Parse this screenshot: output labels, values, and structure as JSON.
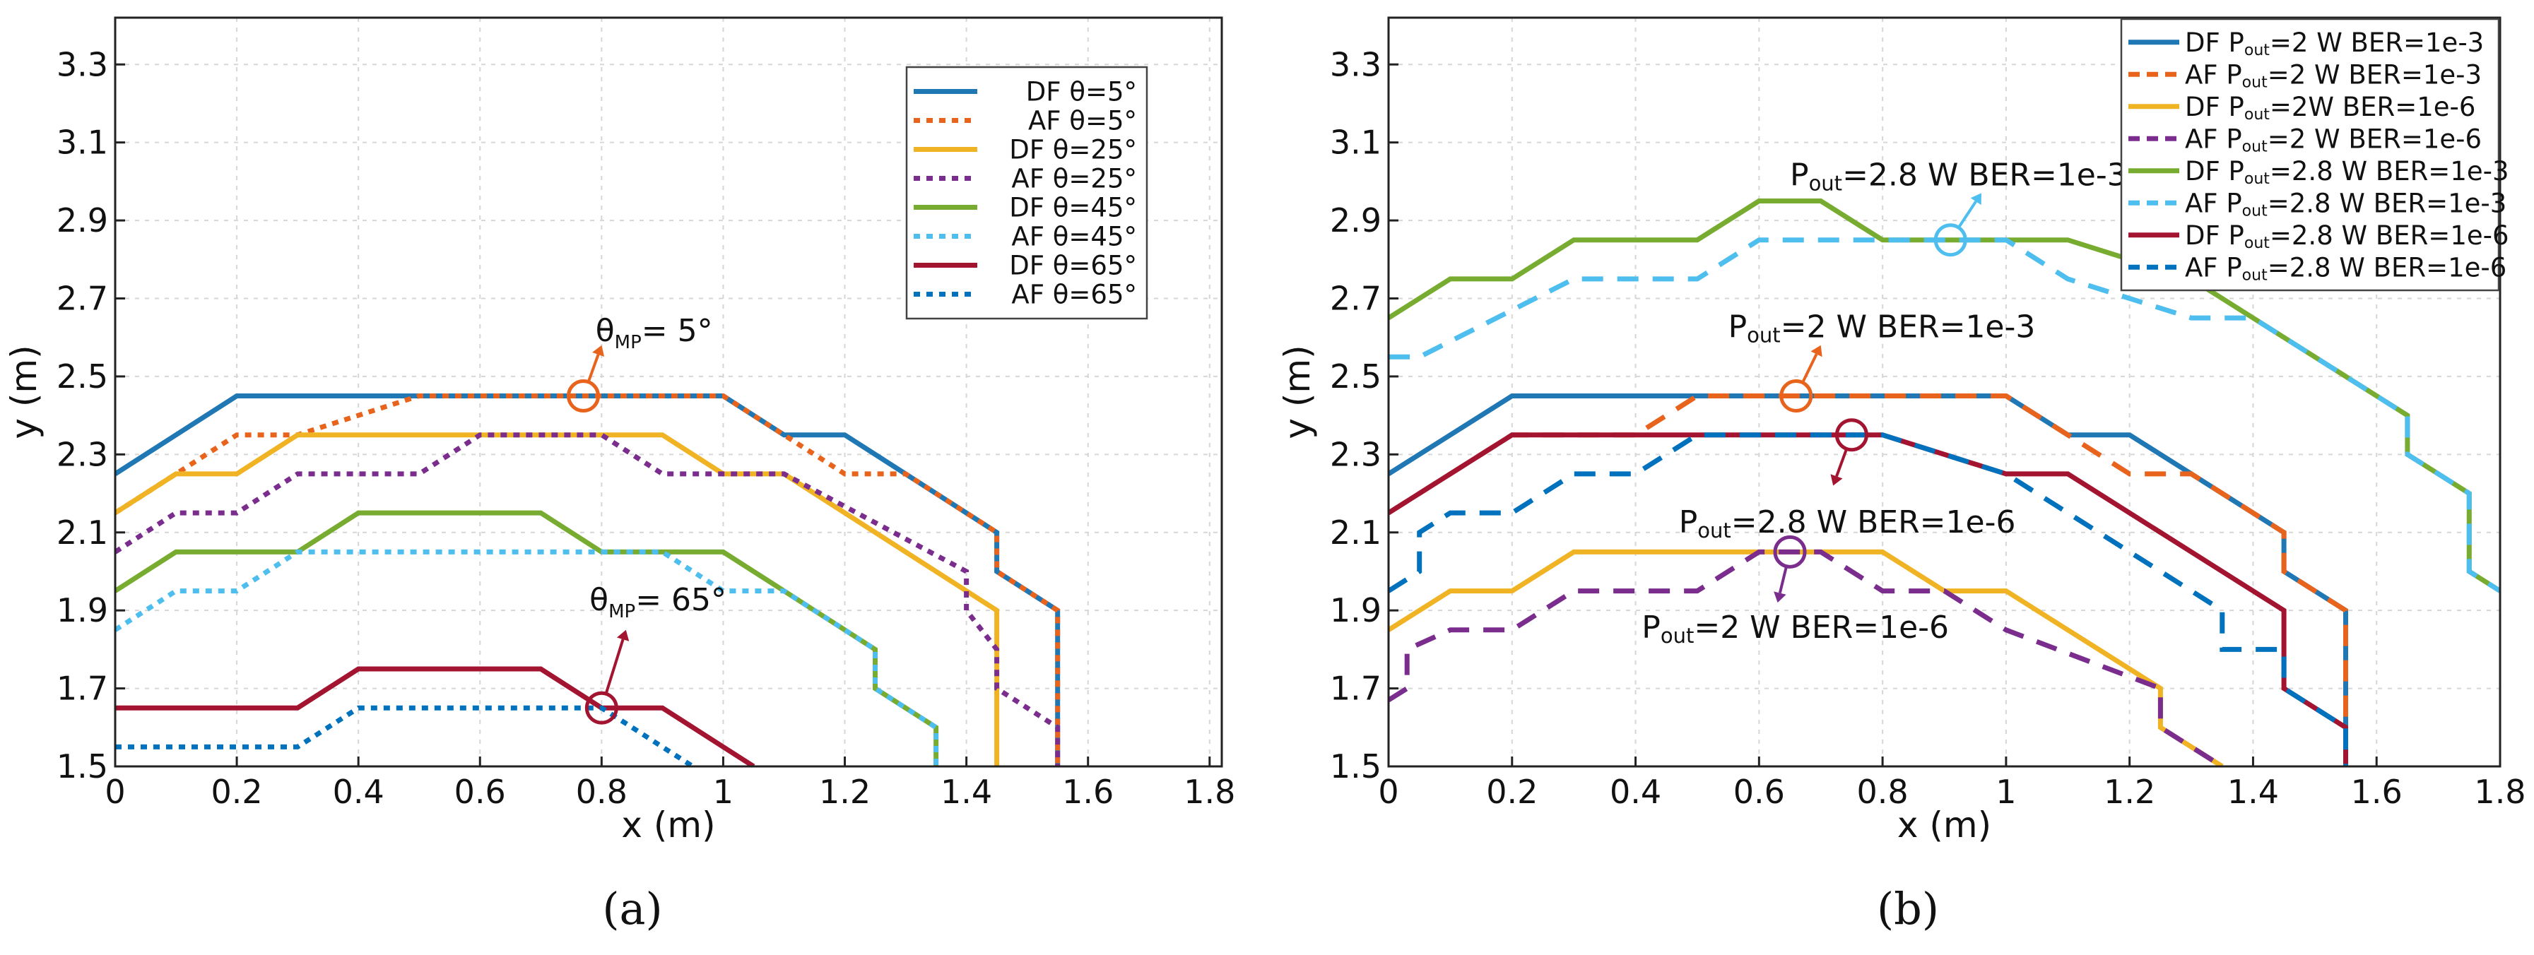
{
  "chart_data": [
    {
      "id": "a",
      "type": "line",
      "caption": "(a)",
      "title": "",
      "xlabel": "x (m)",
      "ylabel": "y (m)",
      "xlim": [
        0,
        1.82
      ],
      "ylim": [
        1.5,
        3.42
      ],
      "xticks": [
        0,
        0.2,
        0.4,
        0.6,
        0.8,
        1,
        1.2,
        1.4,
        1.6,
        1.8
      ],
      "xtick_labels": [
        "0",
        "0.2",
        "0.4",
        "0.6",
        "0.8",
        "1",
        "1.2",
        "1.4",
        "1.6",
        "1.8"
      ],
      "yticks": [
        1.5,
        1.7,
        1.9,
        2.1,
        2.3,
        2.5,
        2.7,
        2.9,
        3.1,
        3.3
      ],
      "ytick_labels": [
        "1.5",
        "1.7",
        "1.9",
        "2.1",
        "2.3",
        "2.5",
        "2.7",
        "2.9",
        "3.1",
        "3.3"
      ],
      "grid": true,
      "legend_position": "top-right",
      "series": [
        {
          "name": "DF θ=5°",
          "color": "#1f77b4",
          "dash": "solid",
          "x": [
            0,
            0.2,
            1.0,
            1.1,
            1.2,
            1.45,
            1.45,
            1.55,
            1.55
          ],
          "y": [
            2.25,
            2.45,
            2.45,
            2.35,
            2.35,
            2.1,
            2.0,
            1.9,
            1.5
          ]
        },
        {
          "name": "AF θ=5°",
          "color": "#e8631c",
          "dash": "dotted",
          "x": [
            0,
            0.2,
            0.3,
            0.5,
            1.0,
            1.2,
            1.3,
            1.45,
            1.45,
            1.55,
            1.55
          ],
          "y": [
            2.15,
            2.35,
            2.35,
            2.45,
            2.45,
            2.25,
            2.25,
            2.1,
            2.0,
            1.9,
            1.5
          ]
        },
        {
          "name": "DF θ=25°",
          "color": "#f0b323",
          "dash": "solid",
          "x": [
            0,
            0.1,
            0.2,
            0.3,
            0.9,
            1.0,
            1.1,
            1.45,
            1.45
          ],
          "y": [
            2.15,
            2.25,
            2.25,
            2.35,
            2.35,
            2.25,
            2.25,
            1.9,
            1.5
          ]
        },
        {
          "name": "AF θ=25°",
          "color": "#7b2d8e",
          "dash": "dotted",
          "x": [
            0,
            0.1,
            0.2,
            0.3,
            0.5,
            0.6,
            0.8,
            0.9,
            1.1,
            1.4,
            1.4,
            1.45,
            1.45,
            1.55,
            1.55
          ],
          "y": [
            2.05,
            2.15,
            2.15,
            2.25,
            2.25,
            2.35,
            2.35,
            2.25,
            2.25,
            2.0,
            1.9,
            1.8,
            1.7,
            1.6,
            1.5
          ]
        },
        {
          "name": "DF θ=45°",
          "color": "#77ac30",
          "dash": "solid",
          "x": [
            0,
            0.1,
            0.3,
            0.4,
            0.7,
            0.8,
            1.0,
            1.1,
            1.25,
            1.25,
            1.35,
            1.35
          ],
          "y": [
            1.95,
            2.05,
            2.05,
            2.15,
            2.15,
            2.05,
            2.05,
            1.95,
            1.8,
            1.7,
            1.6,
            1.5
          ]
        },
        {
          "name": "AF θ=45°",
          "color": "#4dbeee",
          "dash": "dotted",
          "x": [
            0,
            0.1,
            0.2,
            0.3,
            0.9,
            1.0,
            1.1,
            1.25,
            1.25,
            1.35,
            1.35
          ],
          "y": [
            1.85,
            1.95,
            1.95,
            2.05,
            2.05,
            1.95,
            1.95,
            1.8,
            1.7,
            1.6,
            1.5
          ]
        },
        {
          "name": "DF θ=65°",
          "color": "#a2142f",
          "dash": "solid",
          "x": [
            0,
            0.3,
            0.4,
            0.7,
            0.8,
            0.9,
            1.05
          ],
          "y": [
            1.65,
            1.65,
            1.75,
            1.75,
            1.65,
            1.65,
            1.5
          ]
        },
        {
          "name": "AF θ=65°",
          "color": "#0072bd",
          "dash": "dotted",
          "x": [
            0,
            0.3,
            0.4,
            0.8,
            0.95
          ],
          "y": [
            1.55,
            1.55,
            1.65,
            1.65,
            1.5
          ]
        }
      ],
      "annotations": [
        {
          "sym": "θ",
          "sub": "MP",
          "rest": "= 5°",
          "tx": 0.79,
          "ty": 2.59,
          "cx": 0.77,
          "cy": 2.45,
          "ax": 0.8,
          "ay": 2.58,
          "color": "#e8631c"
        },
        {
          "sym": "θ",
          "sub": "MP",
          "rest": "= 65°",
          "tx": 0.78,
          "ty": 1.9,
          "cx": 0.8,
          "cy": 1.65,
          "ax": 0.84,
          "ay": 1.85,
          "color": "#a2142f"
        }
      ]
    },
    {
      "id": "b",
      "type": "line",
      "caption": "(b)",
      "title": "",
      "xlabel": "x (m)",
      "ylabel": "y (m)",
      "xlim": [
        0,
        1.8
      ],
      "ylim": [
        1.5,
        3.42
      ],
      "xticks": [
        0,
        0.2,
        0.4,
        0.6,
        0.8,
        1,
        1.2,
        1.4,
        1.6,
        1.8
      ],
      "xtick_labels": [
        "0",
        "0.2",
        "0.4",
        "0.6",
        "0.8",
        "1",
        "1.2",
        "1.4",
        "1.6",
        "1.8"
      ],
      "yticks": [
        1.5,
        1.7,
        1.9,
        2.1,
        2.3,
        2.5,
        2.7,
        2.9,
        3.1,
        3.3
      ],
      "ytick_labels": [
        "1.5",
        "1.7",
        "1.9",
        "2.1",
        "2.3",
        "2.5",
        "2.7",
        "2.9",
        "3.1",
        "3.3"
      ],
      "grid": true,
      "legend_position": "top-right",
      "series": [
        {
          "p": "DF P",
          "s": "out",
          "q": "=2 W BER=1e-3",
          "color": "#1f77b4",
          "dash": "solid",
          "x": [
            0,
            0.2,
            1.0,
            1.1,
            1.2,
            1.45,
            1.45,
            1.55,
            1.55
          ],
          "y": [
            2.25,
            2.45,
            2.45,
            2.35,
            2.35,
            2.1,
            2.0,
            1.9,
            1.5
          ]
        },
        {
          "p": "AF P",
          "s": "out",
          "q": "=2 W BER=1e-3",
          "color": "#e8631c",
          "dash": "dashed",
          "x": [
            0,
            0.2,
            0.4,
            0.5,
            1.0,
            1.2,
            1.3,
            1.45,
            1.45,
            1.55,
            1.55
          ],
          "y": [
            2.15,
            2.35,
            2.35,
            2.45,
            2.45,
            2.25,
            2.25,
            2.1,
            2.0,
            1.9,
            1.5
          ]
        },
        {
          "p": "DF P",
          "s": "out",
          "q": "=2W BER=1e-6",
          "color": "#f0b323",
          "dash": "solid",
          "x": [
            0,
            0.1,
            0.2,
            0.3,
            0.8,
            0.9,
            1.0,
            1.25,
            1.25,
            1.35
          ],
          "y": [
            1.85,
            1.95,
            1.95,
            2.05,
            2.05,
            1.95,
            1.95,
            1.7,
            1.6,
            1.5
          ]
        },
        {
          "p": "AF P",
          "s": "out",
          "q": "=2 W BER=1e-6",
          "color": "#7b2d8e",
          "dash": "dashed",
          "x": [
            0,
            0.03,
            0.03,
            0.1,
            0.2,
            0.3,
            0.5,
            0.6,
            0.7,
            0.8,
            0.9,
            1.0,
            1.25,
            1.25,
            1.35
          ],
          "y": [
            1.67,
            1.7,
            1.8,
            1.85,
            1.85,
            1.95,
            1.95,
            2.05,
            2.05,
            1.95,
            1.95,
            1.85,
            1.7,
            1.6,
            1.5
          ]
        },
        {
          "p": "DF P",
          "s": "out",
          "q": "=2.8 W BER=1e-3",
          "color": "#77ac30",
          "dash": "solid",
          "x": [
            0,
            0.1,
            0.2,
            0.3,
            0.5,
            0.6,
            0.7,
            0.8,
            1.1,
            1.3,
            1.65,
            1.65,
            1.75,
            1.75,
            1.8
          ],
          "y": [
            2.65,
            2.75,
            2.75,
            2.85,
            2.85,
            2.95,
            2.95,
            2.85,
            2.85,
            2.75,
            2.4,
            2.3,
            2.2,
            2.0,
            1.95
          ]
        },
        {
          "p": "AF P",
          "s": "out",
          "q": "=2.8 W BER=1e-3",
          "color": "#4dbeee",
          "dash": "dashed",
          "x": [
            0,
            0.05,
            0.3,
            0.5,
            0.6,
            1.0,
            1.1,
            1.3,
            1.4,
            1.65,
            1.65,
            1.75,
            1.75,
            1.8
          ],
          "y": [
            2.55,
            2.55,
            2.75,
            2.75,
            2.85,
            2.85,
            2.75,
            2.65,
            2.65,
            2.4,
            2.3,
            2.2,
            2.0,
            1.95
          ]
        },
        {
          "p": "DF P",
          "s": "out",
          "q": "=2.8 W BER=1e-6",
          "color": "#a2142f",
          "dash": "solid",
          "x": [
            0,
            0.2,
            0.8,
            1.0,
            1.1,
            1.45,
            1.45,
            1.55,
            1.55
          ],
          "y": [
            2.15,
            2.35,
            2.35,
            2.25,
            2.25,
            1.9,
            1.7,
            1.6,
            1.5
          ]
        },
        {
          "p": "AF P",
          "s": "out",
          "q": "=2.8 W BER=1e-6",
          "color": "#0072bd",
          "dash": "dashed",
          "x": [
            0,
            0.05,
            0.05,
            0.1,
            0.2,
            0.3,
            0.4,
            0.5,
            0.8,
            1.0,
            1.1,
            1.35,
            1.35,
            1.45,
            1.45,
            1.55,
            1.55
          ],
          "y": [
            1.95,
            2.0,
            2.1,
            2.15,
            2.15,
            2.25,
            2.25,
            2.35,
            2.35,
            2.25,
            2.15,
            1.9,
            1.8,
            1.8,
            1.7,
            1.6,
            1.5
          ]
        }
      ],
      "annotations": [
        {
          "p": "P",
          "s": "out",
          "q": "=2.8 W BER=1e-3",
          "tx": 0.65,
          "ty": 2.99,
          "cx": 0.91,
          "cy": 2.85,
          "ax": 0.96,
          "ay": 2.97,
          "color": "#4dbeee"
        },
        {
          "p": "P",
          "s": "out",
          "q": "=2 W BER=1e-3",
          "tx": 0.55,
          "ty": 2.6,
          "cx": 0.66,
          "cy": 2.45,
          "ax": 0.7,
          "ay": 2.58,
          "color": "#e8631c"
        },
        {
          "p": "P",
          "s": "out",
          "q": "=2.8 W BER=1e-6",
          "tx": 0.47,
          "ty": 2.1,
          "cx": 0.75,
          "cy": 2.35,
          "ax": 0.72,
          "ay": 2.22,
          "color": "#a2142f"
        },
        {
          "p": "P",
          "s": "out",
          "q": "=2 W BER=1e-6",
          "tx": 0.41,
          "ty": 1.83,
          "cx": 0.65,
          "cy": 2.05,
          "ax": 0.63,
          "ay": 1.92,
          "color": "#7b2d8e"
        }
      ]
    }
  ]
}
